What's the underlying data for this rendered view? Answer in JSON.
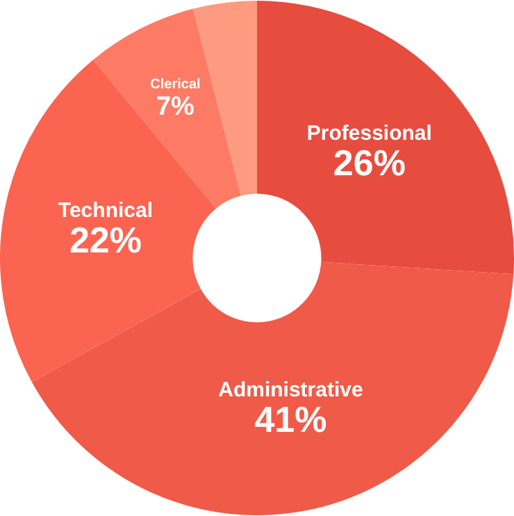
{
  "chart_data": {
    "type": "donut",
    "categories": [
      "Professional",
      "Administrative",
      "Technical",
      "Clerical",
      null
    ],
    "values": [
      26,
      41,
      22,
      7,
      4
    ],
    "colors": [
      "#e64d3f",
      "#f05a48",
      "#fb6451",
      "#fd7b64",
      "#fe9a80"
    ],
    "value_labels": [
      "26%",
      "41%",
      "22%",
      "7%",
      null
    ],
    "legend": false
  }
}
